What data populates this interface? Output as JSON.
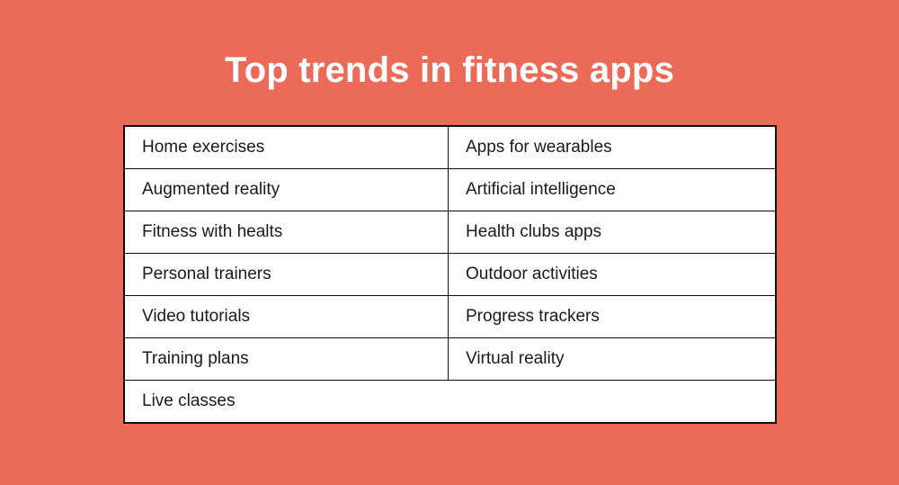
{
  "header": {
    "title": "Top trends in fitness apps"
  },
  "colors": {
    "background": "#EC6B58",
    "table_background": "#FFFFFF",
    "border": "#101010",
    "cell_text": "#1A1A1A",
    "title_text": "#FFFFFF"
  },
  "chart_data": {
    "type": "table",
    "title": "Top trends in fitness apps",
    "columns": 2,
    "cells": [
      [
        "Home exercises",
        "Apps for wearables"
      ],
      [
        "Augmented reality",
        "Artificial intelligence"
      ],
      [
        "Fitness with healts",
        "Health clubs apps"
      ],
      [
        "Personal trainers",
        "Outdoor activities"
      ],
      [
        "Video tutorials",
        "Progress trackers"
      ],
      [
        "Training plans",
        "Virtual reality"
      ],
      [
        "Live classes"
      ]
    ],
    "layout": {
      "last_row_spans_full_width": true,
      "grid": "on",
      "header_row": false
    }
  }
}
